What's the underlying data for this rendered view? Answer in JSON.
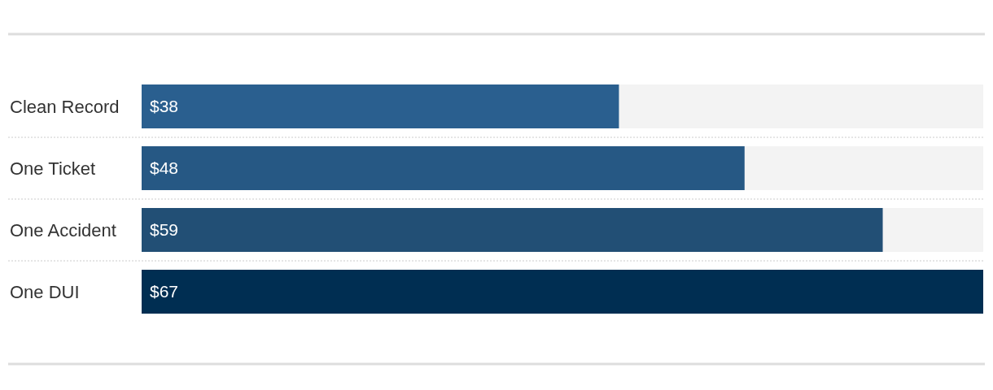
{
  "chart_data": {
    "type": "bar",
    "orientation": "horizontal",
    "categories": [
      "Clean Record",
      "One Ticket",
      "One Accident",
      "One DUI"
    ],
    "values": [
      38,
      48,
      59,
      67
    ],
    "colors": [
      "#2a5f8f",
      "#265884",
      "#224f75",
      "#002e52"
    ],
    "value_labels": [
      "$38",
      "$48",
      "$59",
      "$67"
    ]
  }
}
